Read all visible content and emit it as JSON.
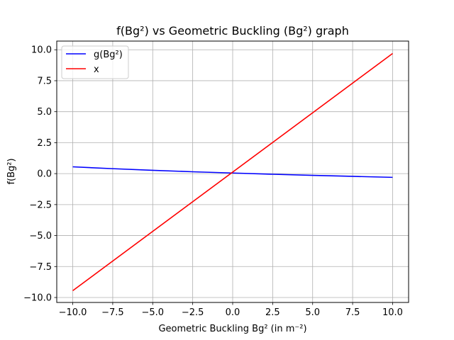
{
  "chart_data": {
    "type": "line",
    "title": "f(Bg²) vs Geometric Buckling (Bg²) graph",
    "xlabel": "Geometric Buckling Bg² (in m⁻²)",
    "ylabel": "f(Bg²)",
    "xlim": [
      -11,
      11
    ],
    "ylim": [
      -10.4,
      10.7
    ],
    "x_ticks": [
      -10.0,
      -7.5,
      -5.0,
      -2.5,
      0.0,
      2.5,
      5.0,
      7.5,
      10.0
    ],
    "x_tick_labels": [
      "−10.0",
      "−7.5",
      "−5.0",
      "−2.5",
      "0.0",
      "2.5",
      "5.0",
      "7.5",
      "10.0"
    ],
    "y_ticks": [
      -10.0,
      -7.5,
      -5.0,
      -2.5,
      0.0,
      2.5,
      5.0,
      7.5,
      10.0
    ],
    "y_tick_labels": [
      "−10.0",
      "−7.5",
      "−5.0",
      "−2.5",
      "0.0",
      "2.5",
      "5.0",
      "7.5",
      "10.0"
    ],
    "grid": true,
    "legend_position": "top-left",
    "series": [
      {
        "name": "g(Bg²)",
        "color": "#0000ff",
        "x": [
          -10,
          -7.5,
          -5,
          -2.5,
          0,
          2.5,
          5,
          7.5,
          10
        ],
        "y": [
          0.55,
          0.4,
          0.27,
          0.15,
          0.05,
          -0.05,
          -0.14,
          -0.22,
          -0.3
        ]
      },
      {
        "name": "x",
        "color": "#ff0000",
        "x": [
          -10,
          10
        ],
        "y": [
          -9.45,
          9.7
        ]
      }
    ]
  }
}
